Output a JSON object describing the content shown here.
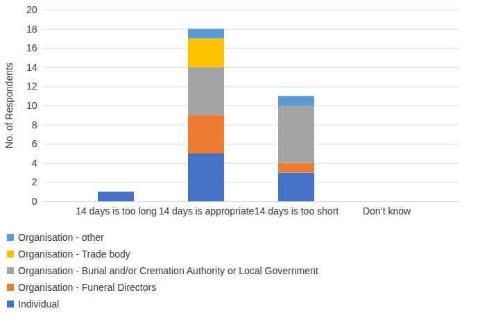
{
  "chart_data": {
    "type": "bar",
    "stacked": true,
    "grid": true,
    "legend": "bottom",
    "y_label": "No. of Respondents",
    "categories": [
      "14 days is too long",
      "14 days is appropriate",
      "14 days is too short",
      "Don’t know"
    ],
    "ylim": [
      0,
      20
    ],
    "yticks": [
      0,
      2,
      4,
      6,
      8,
      10,
      12,
      14,
      16,
      18,
      20
    ],
    "series": [
      {
        "name": "Individual",
        "color": "#4472c4",
        "values": [
          1,
          5,
          3,
          0
        ]
      },
      {
        "name": "Organisation - Funeral Directors",
        "color": "#ed7d31",
        "values": [
          0,
          4,
          1,
          0
        ]
      },
      {
        "name": "Organisation - Burial and/or Cremation Authority or Local Government",
        "color": "#a5a5a5",
        "values": [
          0,
          5,
          6,
          0
        ]
      },
      {
        "name": "Organisation - Trade body",
        "color": "#ffc000",
        "values": [
          0,
          3,
          0,
          0
        ]
      },
      {
        "name": "Organisation - other",
        "color": "#5b9bd5",
        "values": [
          0,
          1,
          1,
          0
        ]
      }
    ]
  }
}
